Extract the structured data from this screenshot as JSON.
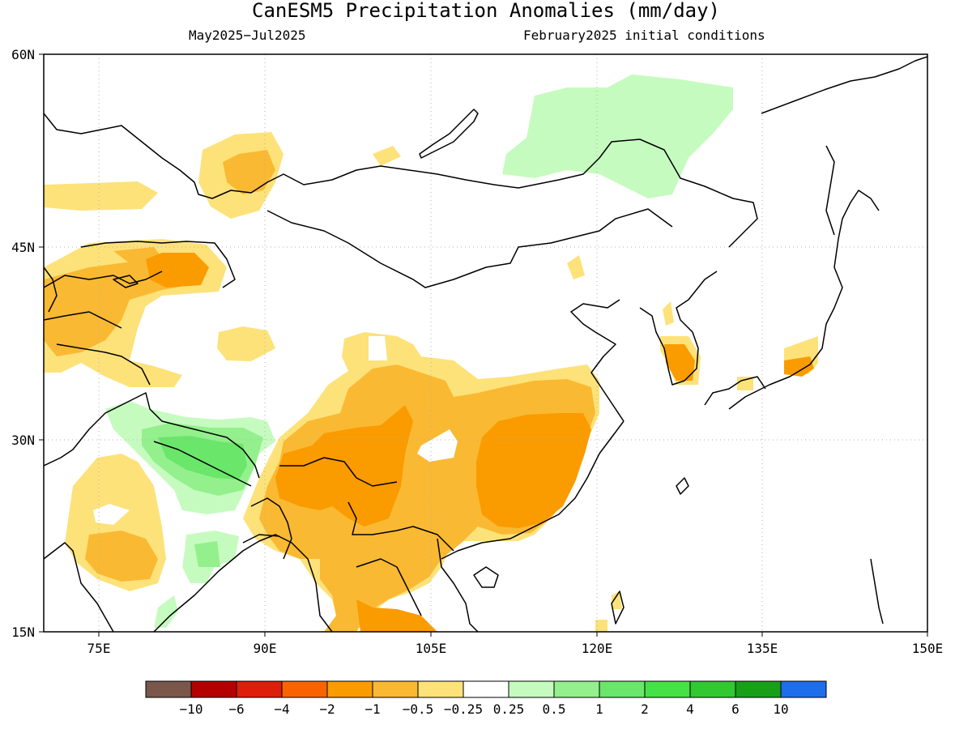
{
  "map": {
    "title": "CanESM5 Precipitation Anomalies (mm/day)",
    "period": "May2025−Jul2025",
    "conditions": "February2025 initial conditions",
    "lat_labels": [
      "60N",
      "45N",
      "30N",
      "15N"
    ],
    "lon_labels": [
      "75E",
      "90E",
      "105E",
      "120E",
      "135E",
      "150E"
    ],
    "extent": {
      "lon": [
        70,
        150
      ],
      "lat": [
        15,
        60
      ]
    }
  },
  "legend": {
    "colors": [
      "#7a574a",
      "#b40000",
      "#dc1e0a",
      "#fa6400",
      "#fa9b00",
      "#fab932",
      "#fde27a",
      "#ffffff",
      "#c6fbc0",
      "#93f08c",
      "#6ae66a",
      "#46e146",
      "#32c832",
      "#19a019",
      "#1e6eeb"
    ],
    "labels": [
      "−10",
      "−6",
      "−4",
      "−2",
      "−1",
      "−0.5",
      "−0.25",
      "0.25",
      "0.5",
      "1",
      "2",
      "4",
      "6",
      "10"
    ]
  }
}
